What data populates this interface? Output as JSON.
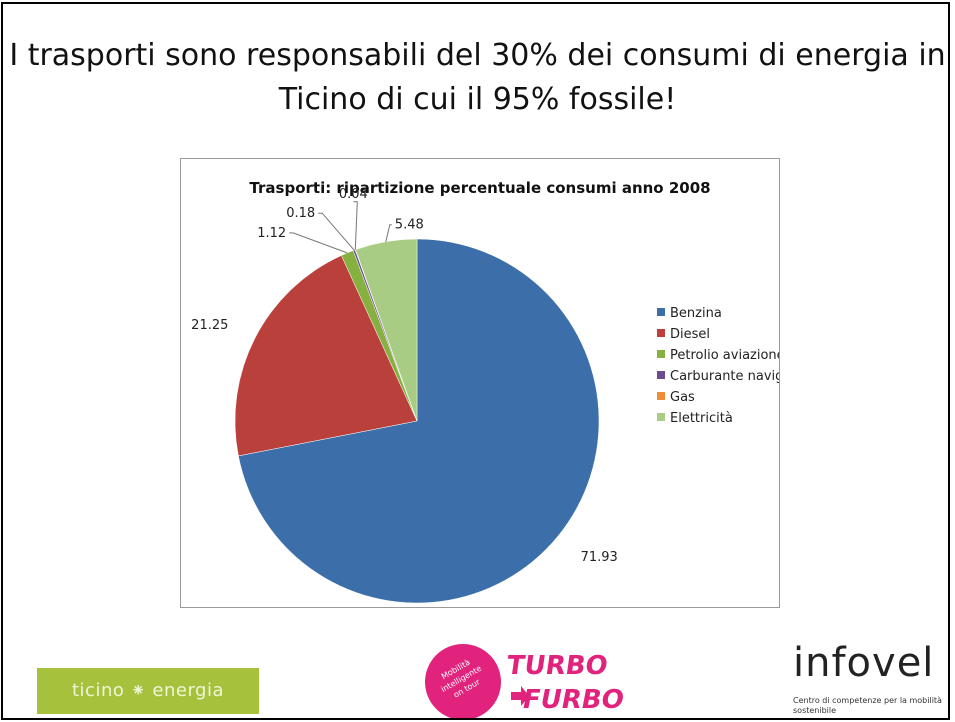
{
  "headline": "I trasporti sono responsabili del 30% dei consumi di energia in Ticino di cui il 95% fossile!",
  "logos": {
    "ticino_energia": "ticino ⁕ energia",
    "turbo_furbo_badge": "Mobilità intelligente on tour",
    "turbo_furbo_word1": "TURBO",
    "turbo_furbo_word2": "FURBO",
    "infovel_word": "infovel",
    "infovel_sub": "Centro di competenze per la mobilità sostenibile"
  },
  "chart_data": {
    "type": "pie",
    "title": "Trasporti: ripartizione percentuale consumi anno 2008",
    "legend_position": "right",
    "slices": [
      {
        "label": "Benzina",
        "value": 71.93,
        "color": "#3c6eaa"
      },
      {
        "label": "Diesel",
        "value": 21.25,
        "color": "#b9403b"
      },
      {
        "label": "Petrolio aviazione",
        "value": 1.12,
        "color": "#86b03f"
      },
      {
        "label": "Carburante navigazione",
        "value": 0.18,
        "color": "#6c4b8e"
      },
      {
        "label": "Gas",
        "value": 0.04,
        "color": "#ee8d35"
      },
      {
        "label": "Elettricità",
        "value": 5.48,
        "color": "#a9cc85"
      }
    ]
  }
}
